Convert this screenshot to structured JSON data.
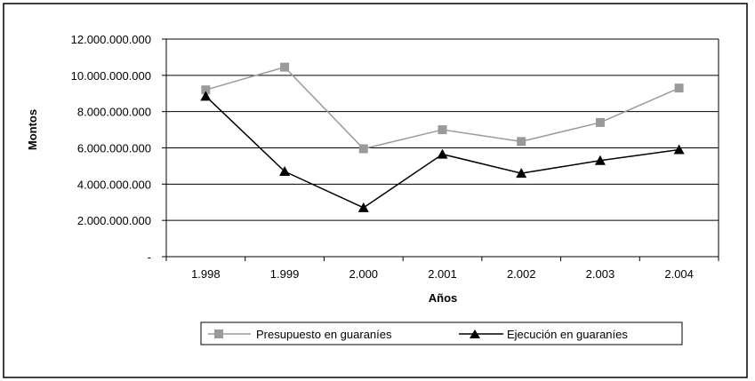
{
  "chart_data": {
    "type": "line",
    "categories": [
      "1.998",
      "1.999",
      "2.000",
      "2.001",
      "2.002",
      "2.003",
      "2.004"
    ],
    "xlabel": "Años",
    "ylabel": "Montos",
    "ylim": [
      0,
      12000000000
    ],
    "yticks": [
      {
        "value": 0,
        "label": "-"
      },
      {
        "value": 2000000000,
        "label": "2.000.000.000"
      },
      {
        "value": 4000000000,
        "label": "4.000.000.000"
      },
      {
        "value": 6000000000,
        "label": "6.000.000.000"
      },
      {
        "value": 8000000000,
        "label": "8.000.000.000"
      },
      {
        "value": 10000000000,
        "label": "10.000.000.000"
      },
      {
        "value": 12000000000,
        "label": "12.000.000.000"
      }
    ],
    "grid": true,
    "legend_position": "bottom",
    "series": [
      {
        "name": "Presupuesto en guaraníes",
        "marker": "square",
        "color": "#9a9a9a",
        "values": [
          9200000000,
          10450000000,
          5950000000,
          7000000000,
          6350000000,
          7400000000,
          9300000000
        ]
      },
      {
        "name": "Ejecución en guaraníes",
        "marker": "triangle",
        "color": "#000000",
        "values": [
          8850000000,
          4700000000,
          2700000000,
          5650000000,
          4600000000,
          5300000000,
          5900000000
        ]
      }
    ]
  }
}
